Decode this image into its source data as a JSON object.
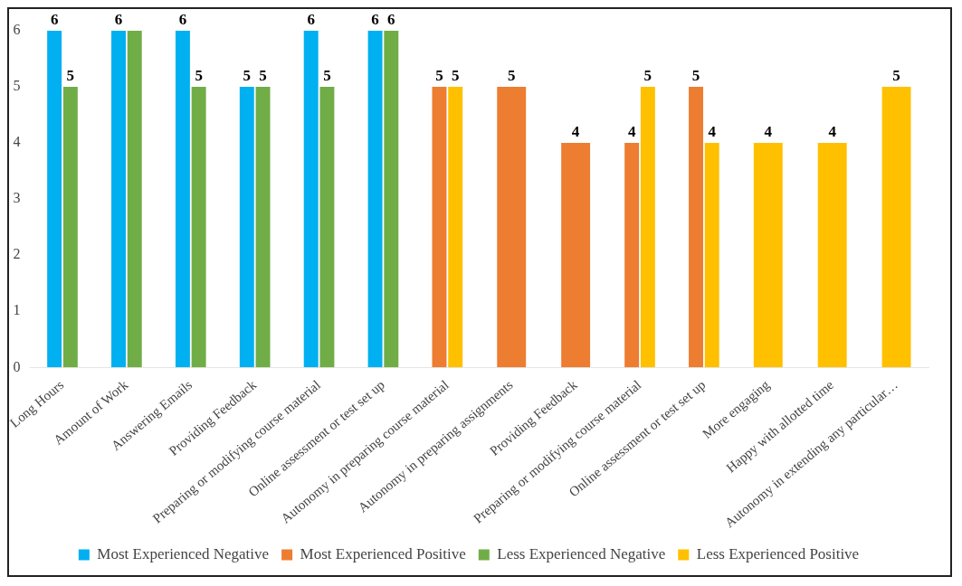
{
  "chart_data": {
    "type": "bar",
    "categories": [
      "Long Hours",
      "Amount of Work",
      "Answering Emails",
      "Providing Feedback",
      "Preparing or modifying course material",
      "Online assessment or test set up",
      "Autonomy in preparing course material",
      "Autonomy in preparing assignments",
      "Providing Feedback",
      "Preparing or modifying course material",
      "Online assessment or test set up",
      "More engaging",
      "Happy with allotted time",
      "Autonomy in extending any particular…"
    ],
    "series": [
      {
        "name": "Most Experienced Negative",
        "color": "#00b0f0",
        "values": [
          6,
          6,
          6,
          5,
          6,
          6,
          null,
          null,
          null,
          null,
          null,
          null,
          null,
          null
        ],
        "value_labels": [
          "6",
          "6",
          "6",
          "5",
          "6",
          "6",
          null,
          null,
          null,
          null,
          null,
          null,
          null,
          null
        ]
      },
      {
        "name": "Most Experienced Positive",
        "color": "#ed7d31",
        "values": [
          null,
          null,
          null,
          null,
          null,
          null,
          5,
          5,
          4,
          4,
          5,
          null,
          null,
          null
        ],
        "value_labels": [
          null,
          null,
          null,
          null,
          null,
          null,
          "5",
          "5",
          "4",
          "4",
          "5",
          null,
          null,
          null
        ]
      },
      {
        "name": "Less Experienced Negative",
        "color": "#70ad47",
        "values": [
          5,
          6,
          5,
          5,
          5,
          6,
          null,
          null,
          null,
          null,
          null,
          null,
          null,
          null
        ],
        "value_labels": [
          "5",
          null,
          "5",
          "5",
          "5",
          "6",
          null,
          null,
          null,
          null,
          null,
          null,
          null,
          null
        ]
      },
      {
        "name": "Less Experienced Positive",
        "color": "#ffc000",
        "values": [
          null,
          null,
          null,
          null,
          null,
          null,
          5,
          null,
          null,
          5,
          4,
          4,
          4,
          5
        ],
        "value_labels": [
          null,
          null,
          null,
          null,
          null,
          null,
          "5",
          null,
          null,
          "5",
          "4",
          "4",
          "4",
          "5"
        ]
      }
    ],
    "ylim": [
      0,
      6
    ],
    "yticks": [
      0,
      1,
      2,
      3,
      4,
      5,
      6
    ],
    "grid": false,
    "legend": "bottom"
  }
}
